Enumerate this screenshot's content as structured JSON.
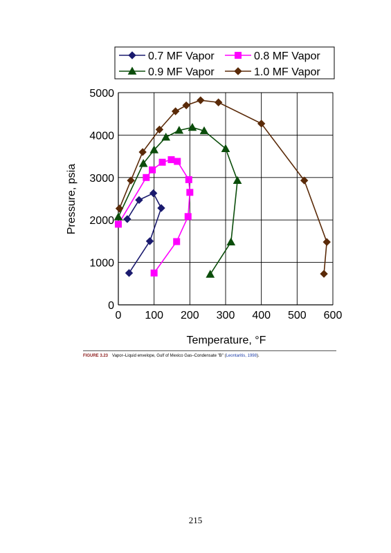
{
  "chart_data": {
    "type": "line",
    "xlabel": "Temperature, °F",
    "ylabel": "Pressure, psia",
    "xlim": [
      0,
      600
    ],
    "ylim": [
      0,
      5000
    ],
    "xticks": [
      "0",
      "100",
      "200",
      "300",
      "400",
      "500",
      "600"
    ],
    "yticks": [
      "0",
      "1000",
      "2000",
      "3000",
      "4000",
      "5000"
    ],
    "grid": true,
    "legend_position": "top",
    "series": [
      {
        "name": "0.7 MF Vapor",
        "color": "#1a1a6e",
        "marker": "diamond",
        "x": [
          30,
          88,
          120,
          98,
          58,
          25
        ],
        "y": [
          750,
          1500,
          2280,
          2630,
          2470,
          2020
        ]
      },
      {
        "name": "0.8 MF Vapor",
        "color": "#ff00ff",
        "marker": "square",
        "x": [
          100,
          163,
          195,
          200,
          197,
          165,
          148,
          123,
          95,
          78,
          0
        ],
        "y": [
          750,
          1490,
          2080,
          2650,
          2950,
          3380,
          3420,
          3360,
          3180,
          3000,
          1900
        ]
      },
      {
        "name": "0.9 MF Vapor",
        "color": "#0b4d0b",
        "marker": "triangle",
        "x": [
          257,
          315,
          333,
          300,
          240,
          207,
          170,
          133,
          100,
          70,
          0
        ],
        "y": [
          720,
          1480,
          2930,
          3680,
          4100,
          4180,
          4110,
          3950,
          3650,
          3330,
          2070
        ]
      },
      {
        "name": "1.0 MF Vapor",
        "color": "#5a2a08",
        "marker": "diamond",
        "x": [
          575,
          583,
          520,
          400,
          280,
          230,
          190,
          160,
          115,
          68,
          35,
          3
        ],
        "y": [
          730,
          1480,
          2930,
          4270,
          4770,
          4820,
          4700,
          4560,
          4130,
          3600,
          2930,
          2270
        ]
      }
    ]
  },
  "caption": {
    "figure_label": "FIGURE 3.23",
    "text": "Vapor–Liquid envelope, Gulf of Mexico Gas–Condensate \"B\" (",
    "citation": "Leontaritis, 1998",
    "end": ")."
  },
  "page_number": "215"
}
